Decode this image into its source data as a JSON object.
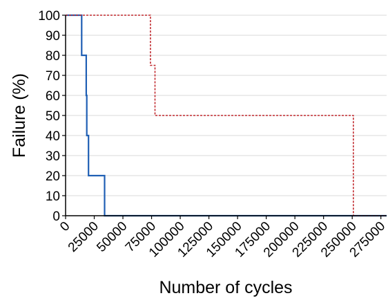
{
  "chart_data": {
    "type": "line",
    "title": "",
    "xlabel": "Number of cycles",
    "ylabel": "Failure (%)",
    "xlim": [
      0,
      280000
    ],
    "ylim": [
      0,
      100
    ],
    "x_ticks": [
      "0",
      "25000",
      "50000",
      "75000",
      "100000",
      "125000",
      "150000",
      "175000",
      "200000",
      "225000",
      "250000",
      "275000"
    ],
    "y_ticks": [
      "0",
      "10",
      "20",
      "30",
      "40",
      "50",
      "60",
      "70",
      "80",
      "90",
      "100"
    ],
    "grid": true,
    "legend": "none",
    "series": [
      {
        "color": "#1f5fb4",
        "line_style": "solid",
        "points": [
          [
            0,
            100
          ],
          [
            14000,
            100
          ],
          [
            14000,
            80
          ],
          [
            18000,
            80
          ],
          [
            18000,
            60
          ],
          [
            18500,
            60
          ],
          [
            18500,
            40
          ],
          [
            20000,
            40
          ],
          [
            20000,
            20
          ],
          [
            34000,
            20
          ],
          [
            34000,
            0
          ],
          [
            280000,
            0
          ]
        ]
      },
      {
        "color": "#c0282d",
        "line_style": "dashed",
        "points": [
          [
            0,
            100
          ],
          [
            74000,
            100
          ],
          [
            74000,
            75
          ],
          [
            78000,
            75
          ],
          [
            78000,
            50
          ],
          [
            251000,
            50
          ],
          [
            251000,
            0
          ],
          [
            280000,
            0
          ]
        ]
      }
    ]
  }
}
